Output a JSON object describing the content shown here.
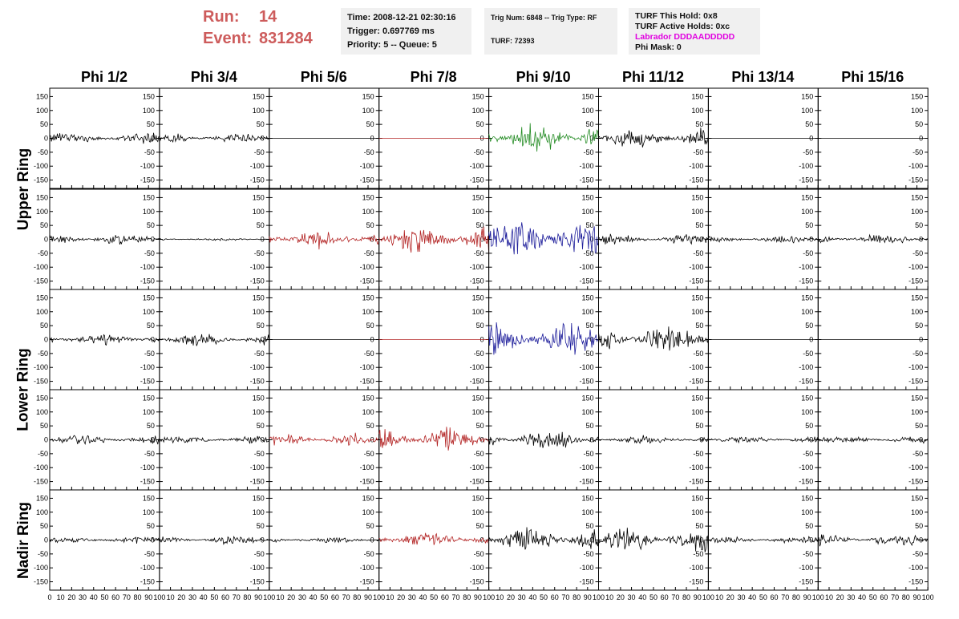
{
  "header": {
    "run_label": "Run:",
    "run_value": "14",
    "event_label": "Event:",
    "event_value": "831284"
  },
  "info_time": {
    "time": "Time: 2008-12-21 02:30:16",
    "trigger": "Trigger: 0.697769 ms",
    "priority": "Priority: 5 -- Queue: 5"
  },
  "info_trig": {
    "trig": "Trig Num: 6848 -- Trig Type: RF",
    "turf": "TURF: 72393"
  },
  "info_turf": {
    "hold": "TURF This Hold: 0x8",
    "active": "TURF Active Holds: 0xc",
    "labrador": "Labrador DDDAADDDDD",
    "phimask": "Phi Mask: 0"
  },
  "columns": [
    "Phi 1/2",
    "Phi 3/4",
    "Phi 5/6",
    "Phi 7/8",
    "Phi 9/10",
    "Phi 11/12",
    "Phi 13/14",
    "Phi 15/16"
  ],
  "row_labels": [
    {
      "label": "Upper Ring",
      "rows": [
        0,
        1
      ]
    },
    {
      "label": "Lower Ring",
      "rows": [
        2,
        3
      ]
    },
    {
      "label": "Nadir Ring",
      "rows": [
        4
      ]
    }
  ],
  "colors": {
    "black": "#000000",
    "red": "#b22222",
    "green": "#228b22",
    "blue": "#1c1c9a",
    "header_red": "#cd5c5c",
    "magenta": "#e000e0"
  },
  "chart_data": {
    "type": "line",
    "x_range": [
      0,
      100
    ],
    "y_range": [
      -180,
      180
    ],
    "y_ticks": [
      -150,
      -100,
      -50,
      0,
      50,
      100,
      150
    ],
    "y_tick_labels": [
      "-150",
      "-100",
      "-50",
      "0",
      "50",
      "100",
      "150"
    ],
    "x_tick_labels": [
      "0",
      "10",
      "20",
      "30",
      "40",
      "50",
      "60",
      "70",
      "80",
      "90",
      "100"
    ],
    "grid": false,
    "panels": [
      {
        "row": 0,
        "col": 0,
        "color": "black",
        "amp": 15
      },
      {
        "row": 0,
        "col": 1,
        "color": "black",
        "amp": 14
      },
      {
        "row": 0,
        "col": 2,
        "color": "black",
        "amp": 0
      },
      {
        "row": 0,
        "col": 3,
        "color": "red",
        "amp": 0
      },
      {
        "row": 0,
        "col": 4,
        "color": "green",
        "amp": 45
      },
      {
        "row": 0,
        "col": 5,
        "color": "black",
        "amp": 30
      },
      {
        "row": 0,
        "col": 6,
        "color": "black",
        "amp": 0
      },
      {
        "row": 0,
        "col": 7,
        "color": "black",
        "amp": 0
      },
      {
        "row": 1,
        "col": 0,
        "color": "black",
        "amp": 15
      },
      {
        "row": 1,
        "col": 1,
        "color": "black",
        "amp": 4
      },
      {
        "row": 1,
        "col": 2,
        "color": "red",
        "amp": 25
      },
      {
        "row": 1,
        "col": 3,
        "color": "red",
        "amp": 40
      },
      {
        "row": 1,
        "col": 4,
        "color": "blue",
        "amp": 60
      },
      {
        "row": 1,
        "col": 5,
        "color": "black",
        "amp": 14
      },
      {
        "row": 1,
        "col": 6,
        "color": "black",
        "amp": 10
      },
      {
        "row": 1,
        "col": 7,
        "color": "black",
        "amp": 15
      },
      {
        "row": 2,
        "col": 0,
        "color": "black",
        "amp": 16
      },
      {
        "row": 2,
        "col": 1,
        "color": "black",
        "amp": 18
      },
      {
        "row": 2,
        "col": 2,
        "color": "black",
        "amp": 0
      },
      {
        "row": 2,
        "col": 3,
        "color": "red",
        "amp": 0
      },
      {
        "row": 2,
        "col": 4,
        "color": "blue",
        "amp": 50
      },
      {
        "row": 2,
        "col": 5,
        "color": "black",
        "amp": 40
      },
      {
        "row": 2,
        "col": 6,
        "color": "black",
        "amp": 0
      },
      {
        "row": 2,
        "col": 7,
        "color": "black",
        "amp": 0
      },
      {
        "row": 3,
        "col": 0,
        "color": "black",
        "amp": 14
      },
      {
        "row": 3,
        "col": 1,
        "color": "black",
        "amp": 12
      },
      {
        "row": 3,
        "col": 2,
        "color": "red",
        "amp": 18
      },
      {
        "row": 3,
        "col": 3,
        "color": "red",
        "amp": 35
      },
      {
        "row": 3,
        "col": 4,
        "color": "black",
        "amp": 28
      },
      {
        "row": 3,
        "col": 5,
        "color": "black",
        "amp": 12
      },
      {
        "row": 3,
        "col": 6,
        "color": "black",
        "amp": 10
      },
      {
        "row": 3,
        "col": 7,
        "color": "black",
        "amp": 12
      },
      {
        "row": 4,
        "col": 0,
        "color": "black",
        "amp": 10
      },
      {
        "row": 4,
        "col": 1,
        "color": "black",
        "amp": 12
      },
      {
        "row": 4,
        "col": 2,
        "color": "black",
        "amp": 10
      },
      {
        "row": 4,
        "col": 3,
        "color": "red",
        "amp": 25
      },
      {
        "row": 4,
        "col": 4,
        "color": "black",
        "amp": 35
      },
      {
        "row": 4,
        "col": 5,
        "color": "black",
        "amp": 35
      },
      {
        "row": 4,
        "col": 6,
        "color": "black",
        "amp": 10
      },
      {
        "row": 4,
        "col": 7,
        "color": "black",
        "amp": 18
      }
    ]
  }
}
